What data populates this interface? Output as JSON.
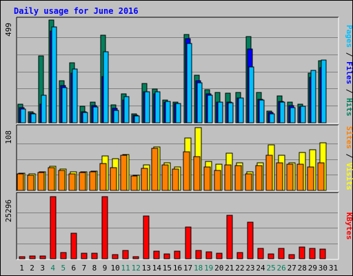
{
  "chart_data": {
    "type": "bar",
    "title": "Daily usage for June 2016",
    "colors": {
      "title": "#0000FF",
      "hits": "#00805C",
      "files": "#0000FF",
      "pages": "#00C0FF",
      "visits": "#FFFF00",
      "sites": "#FF8000",
      "kbytes": "#FF0000",
      "weekend_day": "#00805C",
      "weekday": "#000000",
      "background": "#C0C0C0",
      "gridline": "#808080"
    },
    "days": [
      "1",
      "2",
      "3",
      "4",
      "5",
      "6",
      "7",
      "8",
      "9",
      "10",
      "11",
      "12",
      "13",
      "14",
      "15",
      "16",
      "17",
      "18",
      "19",
      "20",
      "21",
      "22",
      "23",
      "24",
      "25",
      "26",
      "27",
      "28",
      "29",
      "30",
      "31"
    ],
    "weekend_days": [
      4,
      5,
      11,
      12,
      18,
      19,
      25,
      26
    ],
    "panels": [
      {
        "id": "top",
        "ymax_label": "499",
        "ymax": 499,
        "axis_label": [
          {
            "text": "Pages",
            "color": "#00C0FF"
          },
          {
            "text": " / ",
            "color": "#000000"
          },
          {
            "text": "Files",
            "color": "#0000FF"
          },
          {
            "text": " / ",
            "color": "#000000"
          },
          {
            "text": "Hits",
            "color": "#00805C"
          }
        ],
        "series": [
          {
            "name": "Hits",
            "color": "#00805C",
            "values": [
              92,
              55,
              325,
              499,
              205,
              292,
              80,
              100,
              425,
              88,
              140,
              45,
              190,
              165,
              110,
              100,
              428,
              230,
              160,
              148,
              145,
              148,
              418,
              148,
              58,
              132,
              102,
              90,
              240,
              300,
              0
            ]
          },
          {
            "name": "Files",
            "color": "#0000FF",
            "values": [
              75,
              48,
              90,
              445,
              180,
              242,
              55,
              85,
              225,
              70,
              112,
              38,
              150,
              142,
              100,
              95,
              408,
              205,
              140,
              102,
              100,
              122,
              358,
              115,
              50,
              105,
              85,
              78,
              220,
              268,
              0
            ]
          },
          {
            "name": "Pages",
            "color": "#00C0FF",
            "values": [
              68,
              42,
              135,
              465,
              170,
              262,
              50,
              78,
              345,
              60,
              128,
              32,
              150,
              150,
              105,
              95,
              385,
              195,
              135,
              102,
              98,
              122,
              270,
              112,
              45,
              100,
              75,
              80,
              255,
              305,
              0
            ]
          }
        ]
      },
      {
        "id": "middle",
        "ymax_label": "108",
        "ymax": 108,
        "axis_label": [
          {
            "text": "Sites",
            "color": "#FF8000"
          },
          {
            "text": " / ",
            "color": "#000000"
          },
          {
            "text": "Visits",
            "color": "#FFFF00"
          }
        ],
        "series": [
          {
            "name": "Visits",
            "color": "#FFFF00",
            "values": [
              30,
              28,
              32,
              41,
              37,
              32,
              32,
              33,
              59,
              55,
              62,
              26,
              44,
              75,
              47,
              40,
              90,
              108,
              50,
              45,
              64,
              47,
              32,
              47,
              78,
              60,
              48,
              65,
              70,
              82,
              0
            ]
          },
          {
            "name": "Sites",
            "color": "#FF8000",
            "values": [
              29,
              26,
              31,
              39,
              34,
              29,
              31,
              32,
              46,
              39,
              60,
              25,
              38,
              72,
              44,
              37,
              67,
              58,
              40,
              35,
              44,
              43,
              28,
              43,
              61,
              47,
              45,
              45,
              40,
              48,
              0
            ]
          }
        ]
      },
      {
        "id": "bottom",
        "ymax_label": "25296",
        "ymax": 25296,
        "axis_label": [
          {
            "text": "KBytes",
            "color": "#FF0000"
          }
        ],
        "series": [
          {
            "name": "KBytes",
            "color": "#FF0000",
            "values": [
              900,
              1200,
              1100,
              25296,
              2500,
              10500,
              2300,
              2200,
              25296,
              1800,
              3400,
              900,
              17500,
              3000,
              1900,
              3100,
              13000,
              3300,
              2700,
              2200,
              17700,
              2500,
              15000,
              4200,
              2000,
              4200,
              1800,
              4700,
              4300,
              3800,
              0
            ]
          }
        ]
      }
    ]
  }
}
